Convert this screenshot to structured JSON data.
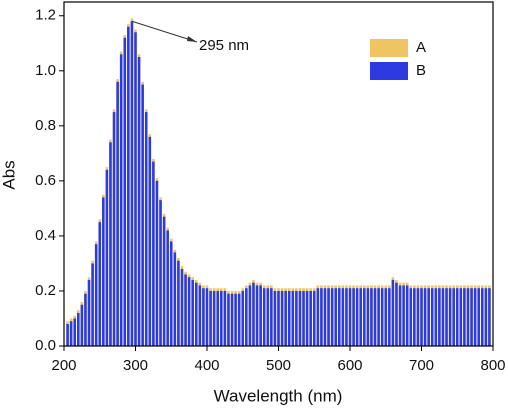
{
  "chart_data": {
    "type": "bar",
    "xlabel": "Wavelength (nm)",
    "ylabel": "Abs",
    "annotation": "295 nm",
    "x": [
      205,
      210,
      215,
      220,
      225,
      230,
      235,
      240,
      245,
      250,
      255,
      260,
      265,
      270,
      275,
      280,
      285,
      290,
      295,
      300,
      305,
      310,
      315,
      320,
      325,
      330,
      335,
      340,
      345,
      350,
      355,
      360,
      365,
      370,
      375,
      380,
      385,
      390,
      395,
      400,
      405,
      410,
      415,
      420,
      425,
      430,
      435,
      440,
      445,
      450,
      455,
      460,
      465,
      470,
      475,
      480,
      485,
      490,
      495,
      500,
      505,
      510,
      515,
      520,
      525,
      530,
      535,
      540,
      545,
      550,
      555,
      560,
      565,
      570,
      575,
      580,
      585,
      590,
      595,
      600,
      605,
      610,
      615,
      620,
      625,
      630,
      635,
      640,
      645,
      650,
      655,
      660,
      665,
      670,
      675,
      680,
      685,
      690,
      695,
      700,
      705,
      710,
      715,
      720,
      725,
      730,
      735,
      740,
      745,
      750,
      755,
      760,
      765,
      770,
      775,
      780,
      785,
      790,
      795
    ],
    "series": [
      {
        "name": "A",
        "color": "#f0c462",
        "values": [
          0.09,
          0.1,
          0.11,
          0.13,
          0.16,
          0.2,
          0.25,
          0.31,
          0.38,
          0.46,
          0.55,
          0.65,
          0.75,
          0.86,
          0.97,
          1.07,
          1.13,
          1.17,
          1.19,
          1.15,
          1.06,
          0.96,
          0.86,
          0.77,
          0.68,
          0.61,
          0.54,
          0.48,
          0.43,
          0.39,
          0.35,
          0.32,
          0.29,
          0.27,
          0.26,
          0.25,
          0.24,
          0.23,
          0.22,
          0.22,
          0.21,
          0.21,
          0.21,
          0.21,
          0.21,
          0.2,
          0.2,
          0.2,
          0.2,
          0.21,
          0.22,
          0.23,
          0.24,
          0.23,
          0.23,
          0.22,
          0.22,
          0.22,
          0.21,
          0.21,
          0.21,
          0.21,
          0.21,
          0.21,
          0.21,
          0.21,
          0.21,
          0.21,
          0.21,
          0.21,
          0.22,
          0.22,
          0.22,
          0.22,
          0.22,
          0.22,
          0.22,
          0.22,
          0.22,
          0.22,
          0.22,
          0.22,
          0.22,
          0.22,
          0.22,
          0.22,
          0.22,
          0.22,
          0.22,
          0.22,
          0.22,
          0.25,
          0.24,
          0.23,
          0.23,
          0.23,
          0.22,
          0.22,
          0.22,
          0.22,
          0.22,
          0.22,
          0.22,
          0.22,
          0.22,
          0.22,
          0.22,
          0.22,
          0.22,
          0.22,
          0.22,
          0.22,
          0.22,
          0.22,
          0.22,
          0.22,
          0.22,
          0.22,
          0.22
        ]
      },
      {
        "name": "B",
        "color": "#2b3be0",
        "values": [
          0.08,
          0.09,
          0.1,
          0.12,
          0.15,
          0.19,
          0.24,
          0.3,
          0.37,
          0.45,
          0.54,
          0.64,
          0.74,
          0.85,
          0.96,
          1.06,
          1.12,
          1.16,
          1.18,
          1.14,
          1.05,
          0.95,
          0.85,
          0.76,
          0.67,
          0.6,
          0.53,
          0.47,
          0.42,
          0.38,
          0.34,
          0.31,
          0.28,
          0.26,
          0.25,
          0.24,
          0.23,
          0.22,
          0.21,
          0.21,
          0.2,
          0.2,
          0.2,
          0.2,
          0.2,
          0.19,
          0.19,
          0.19,
          0.19,
          0.2,
          0.21,
          0.22,
          0.23,
          0.22,
          0.22,
          0.21,
          0.21,
          0.21,
          0.2,
          0.2,
          0.2,
          0.2,
          0.2,
          0.2,
          0.2,
          0.2,
          0.2,
          0.2,
          0.2,
          0.2,
          0.21,
          0.21,
          0.21,
          0.21,
          0.21,
          0.21,
          0.21,
          0.21,
          0.21,
          0.21,
          0.21,
          0.21,
          0.21,
          0.21,
          0.21,
          0.21,
          0.21,
          0.21,
          0.21,
          0.21,
          0.21,
          0.24,
          0.23,
          0.22,
          0.22,
          0.22,
          0.21,
          0.21,
          0.21,
          0.21,
          0.21,
          0.21,
          0.21,
          0.21,
          0.21,
          0.21,
          0.21,
          0.21,
          0.21,
          0.21,
          0.21,
          0.21,
          0.21,
          0.21,
          0.21,
          0.21,
          0.21,
          0.21,
          0.21
        ]
      }
    ],
    "xlim": [
      200,
      800
    ],
    "xticks": [
      200,
      300,
      400,
      500,
      600,
      700,
      800
    ],
    "ylim": [
      0,
      1.25
    ],
    "yticks": [
      {
        "value": 0,
        "label": "0.0"
      },
      0.2,
      0.4,
      0.6,
      0.8,
      {
        "value": 1,
        "label": "1.0"
      },
      1.2
    ],
    "legend": "upper right"
  }
}
